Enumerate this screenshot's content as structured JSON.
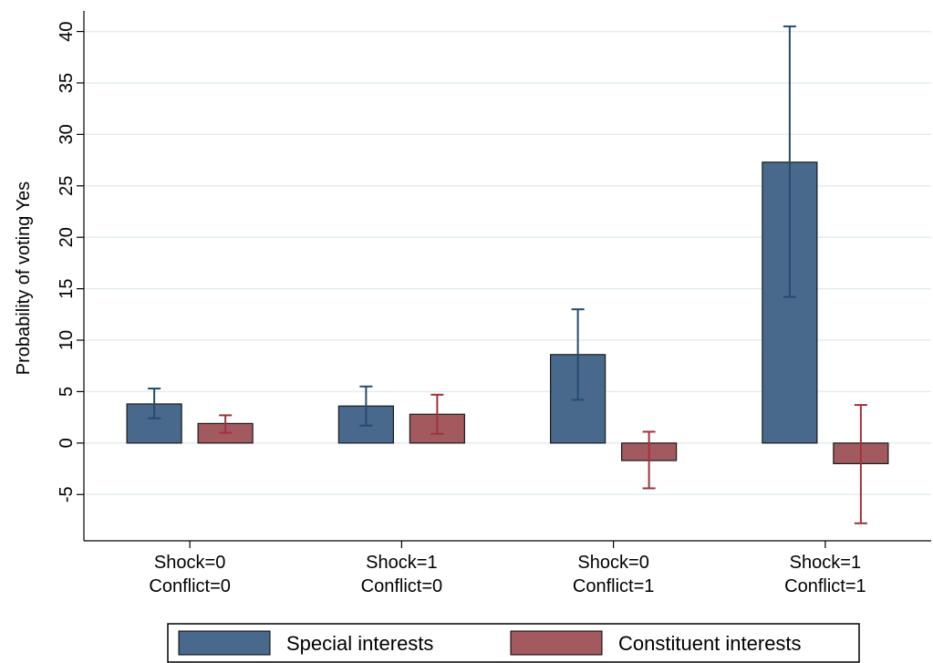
{
  "chart_data": {
    "type": "bar",
    "ylabel": "Probability of voting Yes",
    "xlabel": "",
    "ylim": [
      -9.5,
      42
    ],
    "yticks": [
      -5,
      0,
      5,
      10,
      15,
      20,
      25,
      30,
      35,
      40
    ],
    "ytick_labels": [
      "-5",
      "0",
      "5",
      "10",
      "15",
      "20",
      "25",
      "30",
      "35",
      "40"
    ],
    "grid": true,
    "categories": [
      {
        "line1": "Shock=0",
        "line2": "Conflict=0"
      },
      {
        "line1": "Shock=1",
        "line2": "Conflict=0"
      },
      {
        "line1": "Shock=0",
        "line2": "Conflict=1"
      },
      {
        "line1": "Shock=1",
        "line2": "Conflict=1"
      }
    ],
    "series": [
      {
        "name": "Special interests",
        "color": "#48698c",
        "values": [
          3.8,
          3.6,
          8.6,
          27.3
        ],
        "ci_low": [
          2.4,
          1.7,
          4.2,
          14.2
        ],
        "ci_high": [
          5.3,
          5.5,
          13.0,
          40.5
        ]
      },
      {
        "name": "Constituent interests",
        "color": "#a25a5e",
        "values": [
          1.9,
          2.8,
          -1.7,
          -2.0
        ],
        "ci_low": [
          1.0,
          0.9,
          -4.4,
          -7.8
        ],
        "ci_high": [
          2.7,
          4.7,
          1.1,
          3.7
        ]
      }
    ],
    "legend_position": "bottom"
  }
}
